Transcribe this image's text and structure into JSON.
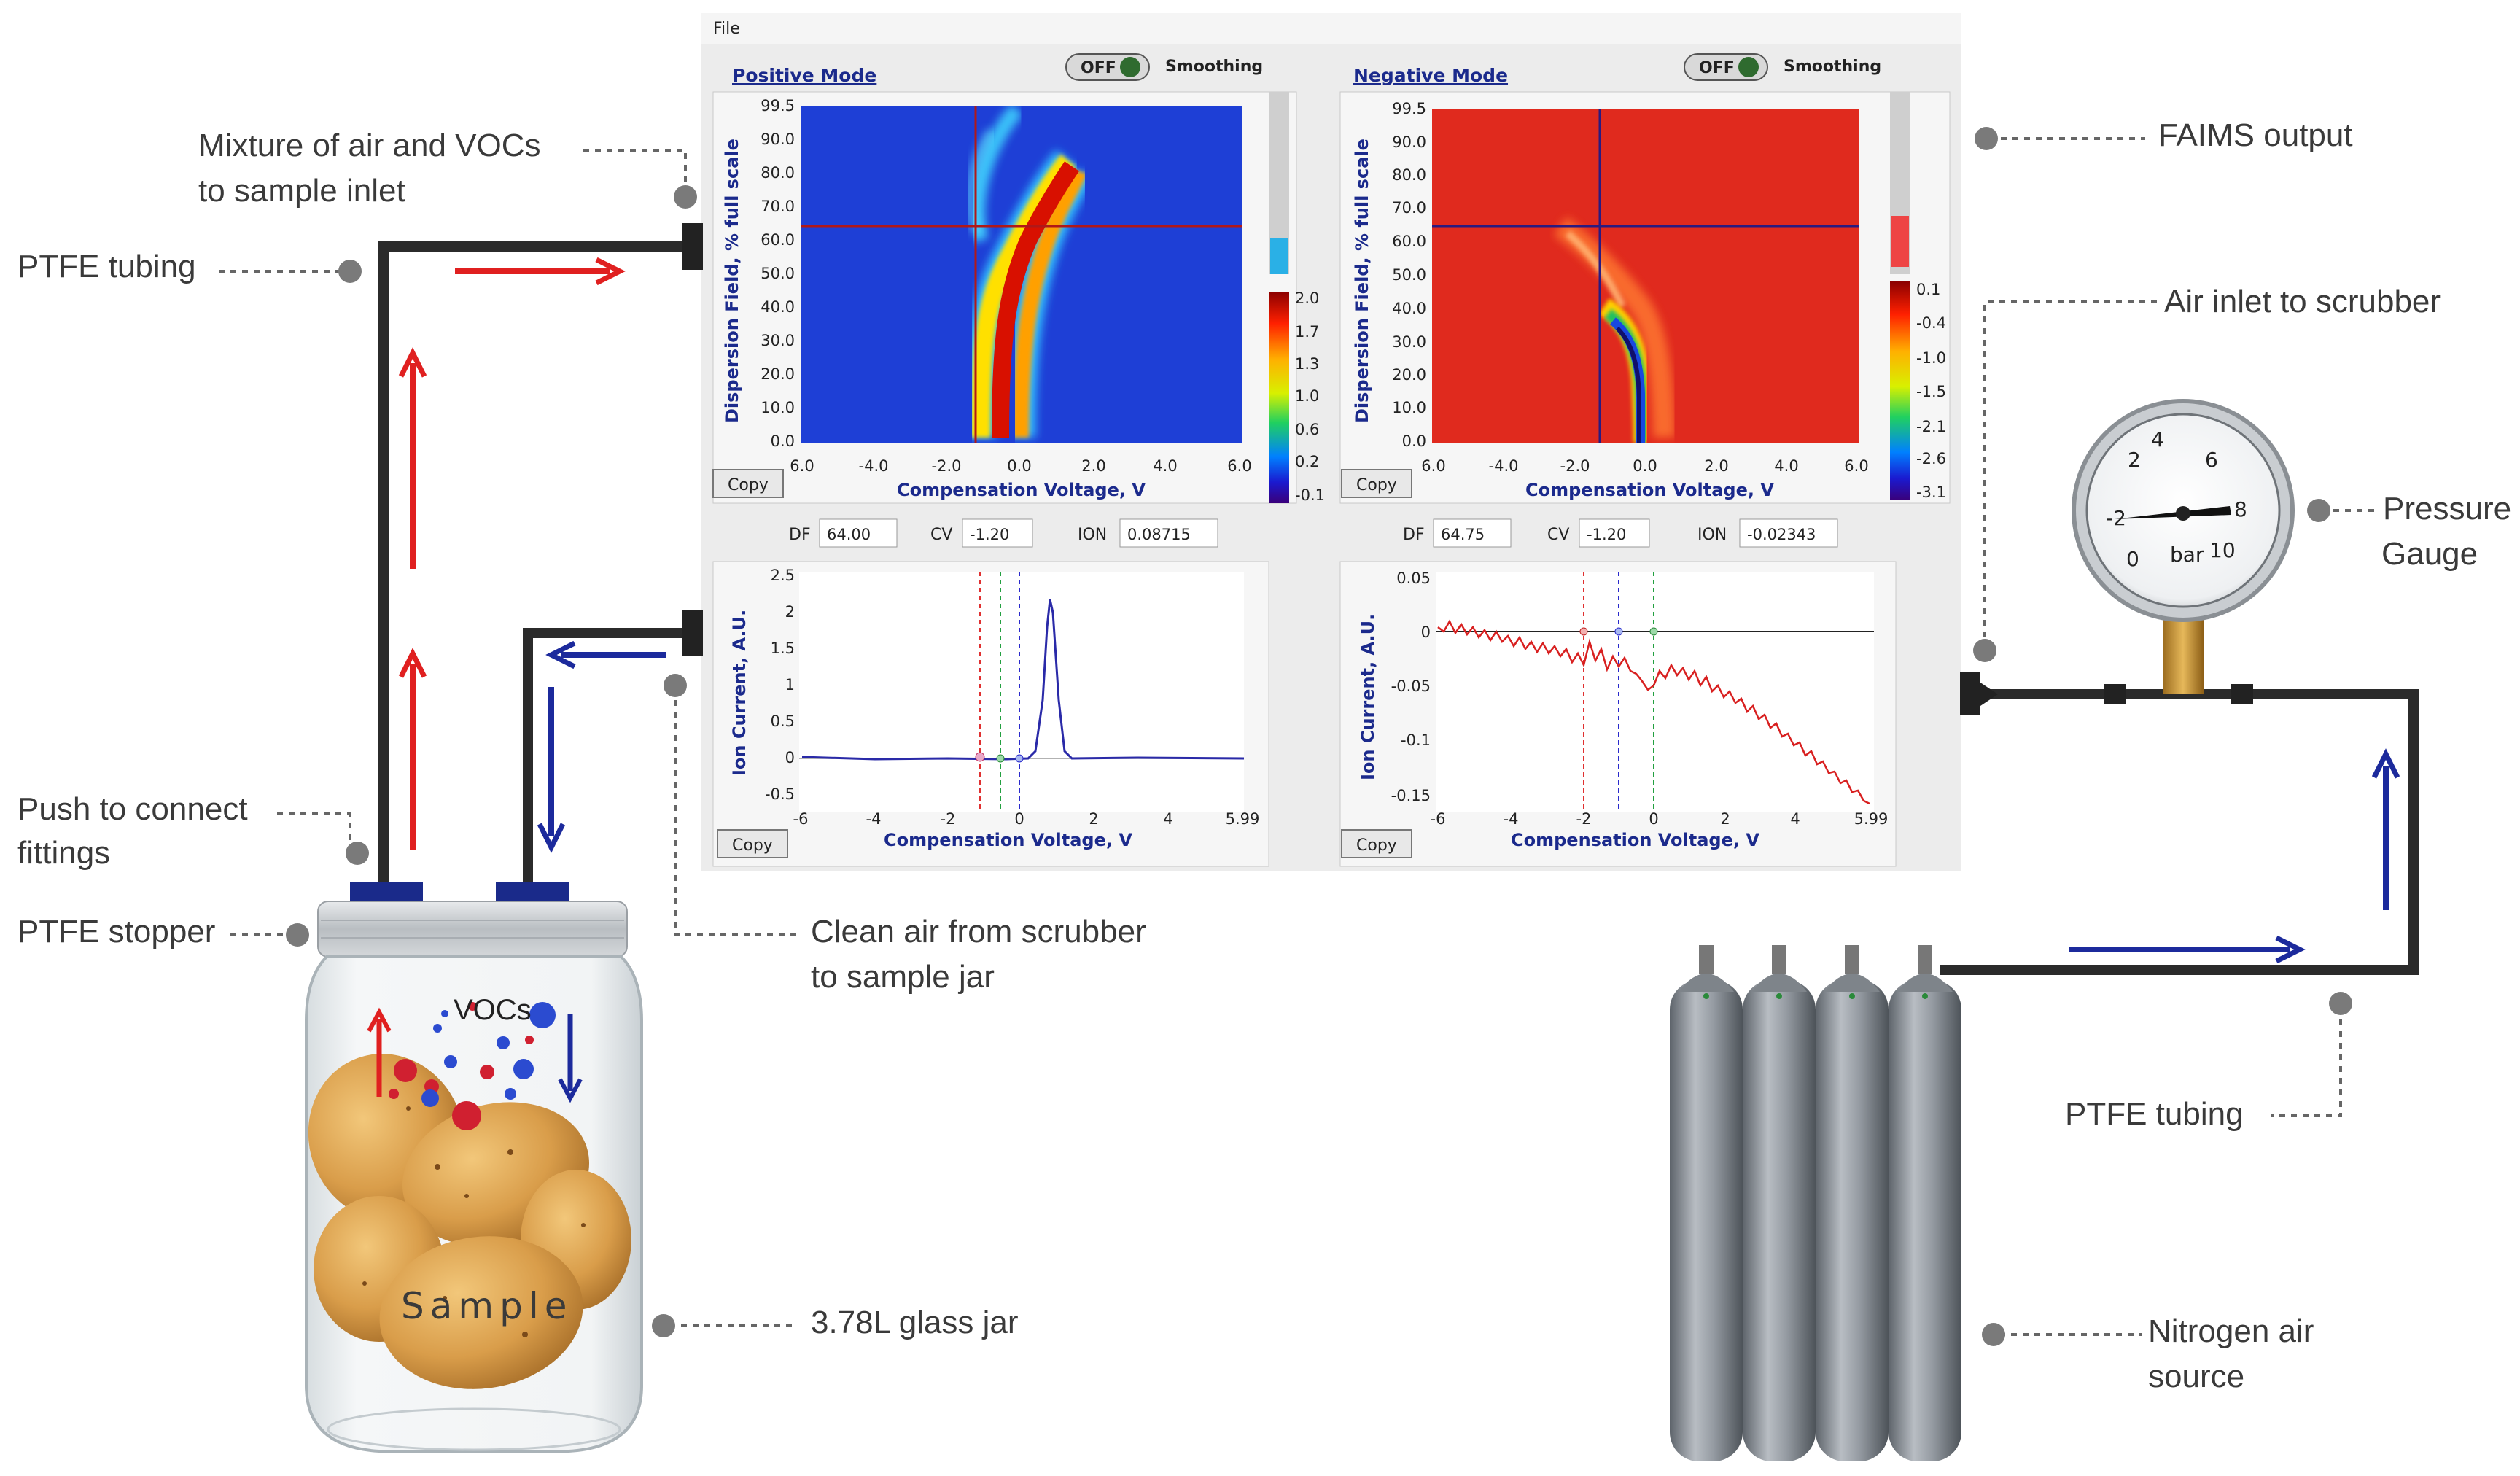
{
  "app": {
    "menu_file": "File"
  },
  "panels": {
    "positive": {
      "title": "Positive Mode",
      "toggle": "OFF",
      "smoothing": "Smoothing",
      "copy": "Copy",
      "df_label": "DF",
      "df_value": "64.00",
      "cv_label": "CV",
      "cv_value": "-1.20",
      "ion_label": "ION",
      "ion_value": "0.08715",
      "heatmap_ylabel": "Dispersion Field, % full scale",
      "heatmap_xlabel": "Compensation Voltage, V",
      "heatmap_yticks": [
        "99.5",
        "90.0",
        "80.0",
        "70.0",
        "60.0",
        "50.0",
        "40.0",
        "30.0",
        "20.0",
        "10.0",
        "0.0"
      ],
      "heatmap_xticks": [
        "6.0",
        "-4.0",
        "-2.0",
        "0.0",
        "2.0",
        "4.0",
        "6.0"
      ],
      "colorbar_ticks": [
        "2.0",
        "1.7",
        "1.3",
        "1.0",
        "0.6",
        "0.2",
        "-0.1"
      ],
      "line_ylabel": "Ion Current, A.U.",
      "line_xlabel": "Compensation Voltage, V",
      "line_yticks": [
        "2.5",
        "2",
        "1.5",
        "1",
        "0.5",
        "0",
        "-0.5"
      ],
      "line_xticks": [
        "-6",
        "-4",
        "-2",
        "0",
        "2",
        "4",
        "5.99"
      ],
      "line_copy": "Copy"
    },
    "negative": {
      "title": "Negative Mode",
      "toggle": "OFF",
      "smoothing": "Smoothing",
      "copy": "Copy",
      "df_label": "DF",
      "df_value": "64.75",
      "cv_label": "CV",
      "cv_value": "-1.20",
      "ion_label": "ION",
      "ion_value": "-0.02343",
      "heatmap_ylabel": "Dispersion Field, % full scale",
      "heatmap_xlabel": "Compensation Voltage, V",
      "heatmap_yticks": [
        "99.5",
        "90.0",
        "80.0",
        "70.0",
        "60.0",
        "50.0",
        "40.0",
        "30.0",
        "20.0",
        "10.0",
        "0.0"
      ],
      "heatmap_xticks": [
        "6.0",
        "-4.0",
        "-2.0",
        "0.0",
        "2.0",
        "4.0",
        "6.0"
      ],
      "colorbar_ticks": [
        "0.1",
        "-0.4",
        "-1.0",
        "-1.5",
        "-2.1",
        "-2.6",
        "-3.1"
      ],
      "line_ylabel": "Ion Current, A.U.",
      "line_xlabel": "Compensation Voltage, V",
      "line_yticks": [
        "0.05",
        "0",
        "-0.05",
        "-0.1",
        "-0.15"
      ],
      "line_xticks": [
        "-6",
        "-4",
        "-2",
        "0",
        "2",
        "4",
        "5.99"
      ],
      "line_copy": "Copy"
    }
  },
  "callouts": {
    "mixture_line1": "Mixture of air and VOCs",
    "mixture_line2": "to sample inlet",
    "ptfe_tubing_left": "PTFE tubing",
    "push_line1": "Push to connect",
    "push_line2": "fittings",
    "ptfe_stopper": "PTFE stopper",
    "clean_air_line1": "Clean air from scrubber",
    "clean_air_line2": "to sample jar",
    "glass_jar": "3.78L glass jar",
    "faims_output": "FAIMS output",
    "air_inlet": "Air inlet to scrubber",
    "pressure_line1": "Pressure",
    "pressure_line2": "Gauge",
    "ptfe_tubing_right": "PTFE tubing",
    "nitrogen_line1": "Nitrogen air",
    "nitrogen_line2": "source"
  },
  "jar": {
    "vocs_label": "VOCs",
    "sample_label": "Sample"
  },
  "gauge": {
    "numbers": [
      "-2",
      "0",
      "2",
      "4",
      "6",
      "8",
      "10"
    ],
    "unit": "bar"
  },
  "colors": {
    "tube": "#2b2b2b",
    "flow_red": "#e02020",
    "flow_blue": "#1c2a9c",
    "cylinder": "#8f959c",
    "panel_bg": "#ececec",
    "positive_heatmap_bg": "#1e3fd6",
    "negative_heatmap_bg": "#e02a1e"
  }
}
